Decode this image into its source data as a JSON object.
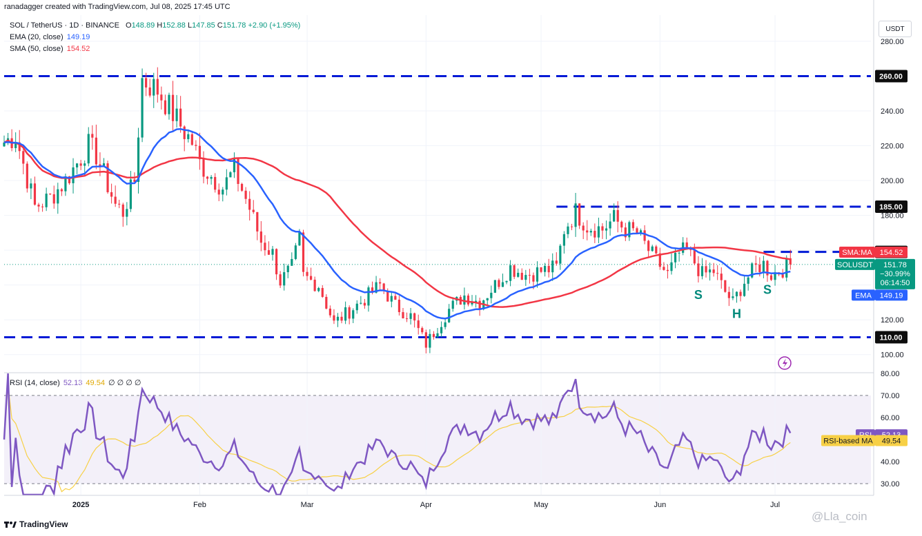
{
  "header": {
    "credit": "ranadagger created with TradingView.com, Jul 08, 2025 17:45 UTC"
  },
  "legend": {
    "symbol": "SOL / TetherUS · 1D · BINANCE",
    "o_label": "O",
    "o": "148.89",
    "h_label": "H",
    "h": "152.88",
    "l_label": "L",
    "l": "147.85",
    "c_label": "C",
    "c": "151.78",
    "change": "+2.90 (+1.95%)",
    "ema_label": "EMA (20, close)",
    "ema_value": "149.19",
    "sma_label": "SMA (50, close)",
    "sma_value": "154.52",
    "rsi_label": "RSI (14, close)",
    "rsi_value": "52.13",
    "rsi_ma_value": "49.54",
    "rsi_extra": "∅ ∅ ∅ ∅"
  },
  "currency_button": "USDT",
  "footer": {
    "brand": "TradingView",
    "watermark": "@Lla_coin"
  },
  "colors": {
    "up": "#089981",
    "down": "#f23645",
    "ema": "#2962ff",
    "sma": "#f23645",
    "level": "#0019d6",
    "rsi": "#7e57c2",
    "rsi_ma": "#f7d046",
    "pattern": "#00897b"
  },
  "chart_data": [
    {
      "type": "candlestick",
      "title": "SOL / TetherUS · 1D · BINANCE",
      "ylim": [
        90,
        295
      ],
      "y_ticks": [
        100,
        120,
        140,
        160,
        180,
        200,
        220,
        240,
        260,
        280
      ],
      "x_ticks": [
        {
          "day": 20,
          "label": "2025"
        },
        {
          "day": 51,
          "label": "Feb"
        },
        {
          "day": 79,
          "label": "Mar"
        },
        {
          "day": 110,
          "label": "Apr"
        },
        {
          "day": 140,
          "label": "May"
        },
        {
          "day": 171,
          "label": "Jun"
        },
        {
          "day": 201,
          "label": "Jul"
        }
      ],
      "x_range_days": [
        0,
        226
      ],
      "anchors": [
        [
          0,
          222
        ],
        [
          3,
          226
        ],
        [
          8,
          185
        ],
        [
          12,
          190
        ],
        [
          16,
          200
        ],
        [
          22,
          220
        ],
        [
          24,
          215
        ],
        [
          29,
          186
        ],
        [
          31,
          182
        ],
        [
          34,
          200
        ],
        [
          36,
          258
        ],
        [
          40,
          252
        ],
        [
          43,
          242
        ],
        [
          47,
          228
        ],
        [
          49,
          222
        ],
        [
          51,
          210
        ],
        [
          53,
          205
        ],
        [
          57,
          196
        ],
        [
          60,
          206
        ],
        [
          64,
          184
        ],
        [
          67,
          165
        ],
        [
          70,
          158
        ],
        [
          72,
          142
        ],
        [
          75,
          150
        ],
        [
          77,
          166
        ],
        [
          78,
          145
        ],
        [
          82,
          140
        ],
        [
          86,
          118
        ],
        [
          90,
          125
        ],
        [
          94,
          132
        ],
        [
          98,
          140
        ],
        [
          102,
          128
        ],
        [
          106,
          122
        ],
        [
          110,
          106
        ],
        [
          113,
          116
        ],
        [
          116,
          126
        ],
        [
          120,
          134
        ],
        [
          124,
          130
        ],
        [
          128,
          140
        ],
        [
          132,
          150
        ],
        [
          136,
          146
        ],
        [
          140,
          148
        ],
        [
          144,
          150
        ],
        [
          146,
          172
        ],
        [
          149,
          182
        ],
        [
          152,
          174
        ],
        [
          156,
          172
        ],
        [
          159,
          178
        ],
        [
          162,
          172
        ],
        [
          165,
          170
        ],
        [
          168,
          160
        ],
        [
          170,
          154
        ],
        [
          173,
          146
        ],
        [
          176,
          158
        ],
        [
          178,
          160
        ],
        [
          182,
          146
        ],
        [
          185,
          148
        ],
        [
          188,
          136
        ],
        [
          190,
          130
        ],
        [
          193,
          142
        ],
        [
          196,
          150
        ],
        [
          198,
          152
        ],
        [
          200,
          146
        ],
        [
          202,
          148
        ],
        [
          205,
          151.78
        ]
      ],
      "ema": {
        "name": "EMA",
        "value": "149.19"
      },
      "sma": {
        "name": "SMA:MA",
        "value": "154.52"
      },
      "levels": [
        {
          "value": 260,
          "label": "260.00",
          "from_day": 0
        },
        {
          "value": 185,
          "label": "185.00",
          "from_day": 144
        },
        {
          "value": 159,
          "label": "159.00",
          "from_day": 198
        },
        {
          "value": 110,
          "label": "110.00",
          "from_day": 0
        }
      ],
      "last_price": {
        "symbol": "SOLUSDT",
        "value": "151.78",
        "change": "−30.99%",
        "countdown": "06:14:50"
      },
      "ema_badge_label": "EMA",
      "annotations": [
        {
          "text": "S",
          "day": 181,
          "value": 132
        },
        {
          "text": "H",
          "day": 191,
          "value": 121
        },
        {
          "text": "S",
          "day": 199,
          "value": 135
        }
      ]
    },
    {
      "type": "line",
      "title": "RSI (14, close)",
      "ylim": [
        25,
        80
      ],
      "y_ticks": [
        30,
        40,
        50,
        60,
        70,
        80
      ],
      "bands": [
        30,
        70
      ],
      "rsi_badge": {
        "label": "RSI",
        "value": "52.13"
      },
      "ma_badge": {
        "label": "RSI-based MA",
        "value": "49.54"
      }
    }
  ]
}
